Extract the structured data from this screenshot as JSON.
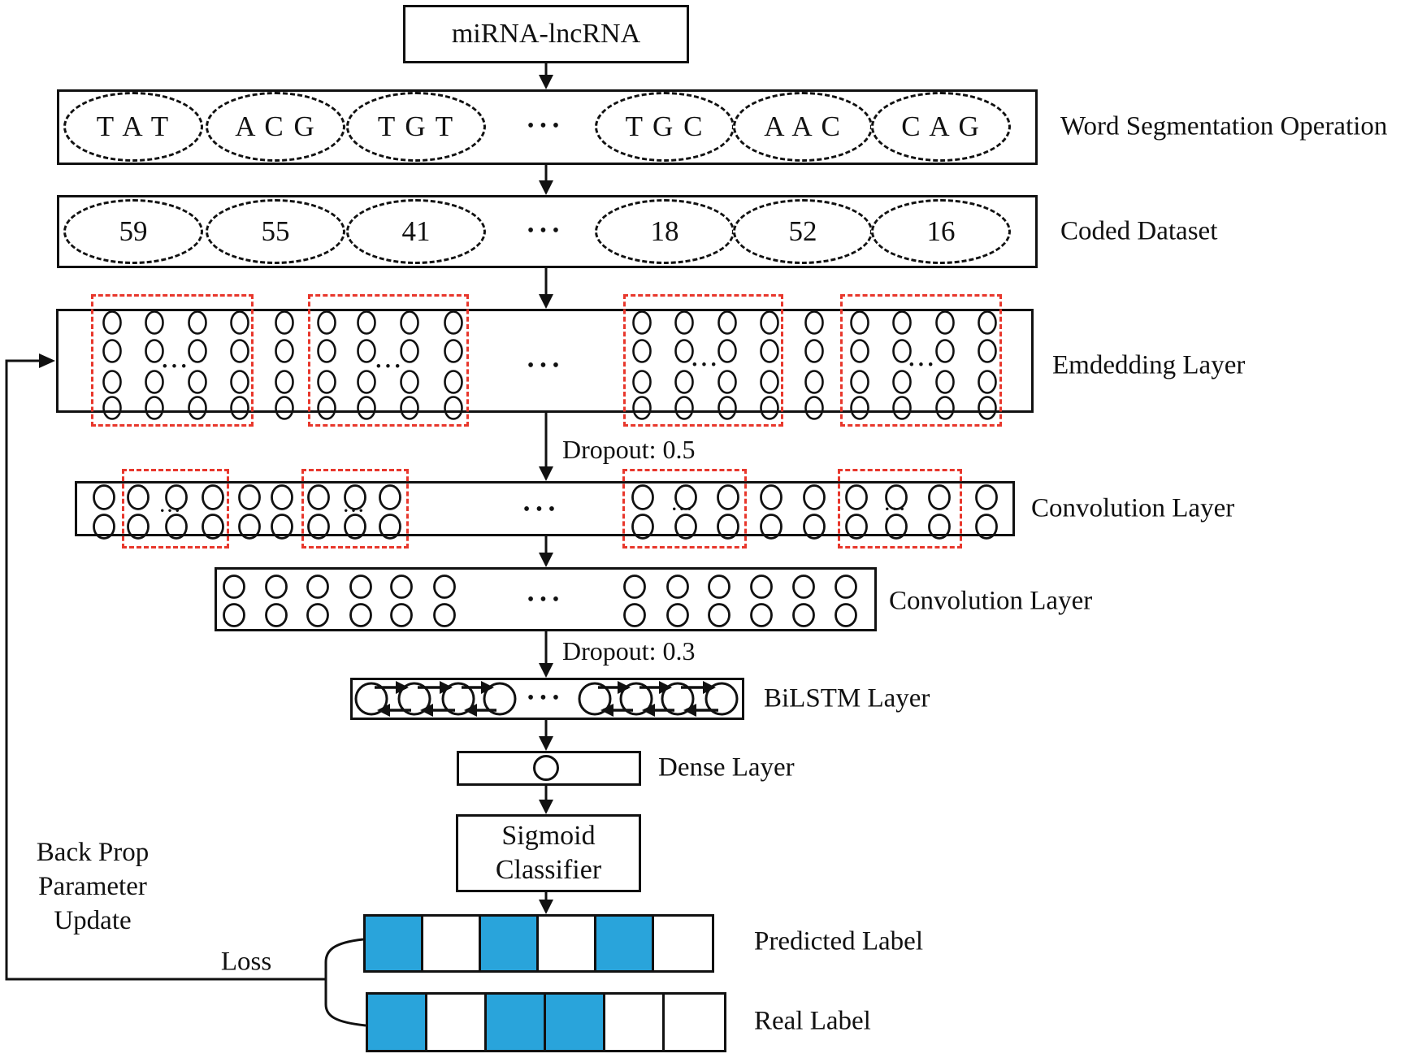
{
  "colors": {
    "blue": "#29a4db",
    "red": "#e8372c",
    "ink": "#111111",
    "white": "#ffffff"
  },
  "dots": "•••",
  "title": "miRNA-lncRNA",
  "rows": {
    "segmentation": {
      "label": "Word Segmentation Operation",
      "items": [
        "T A T",
        "A C G",
        "T G T",
        "T G C",
        "A A C",
        "C A G"
      ]
    },
    "coded": {
      "label": "Coded Dataset",
      "items": [
        "59",
        "55",
        "41",
        "18",
        "52",
        "16"
      ]
    },
    "embedding": {
      "label": "Emdedding Layer"
    },
    "conv1": {
      "label": "Convolution Layer"
    },
    "conv2": {
      "label": "Convolution Layer"
    },
    "bilstm": {
      "label": "BiLSTM Layer"
    },
    "dense": {
      "label": "Dense Layer"
    },
    "sigmoid": {
      "line1": "Sigmoid",
      "line2": "Classifier"
    },
    "predicted": {
      "label": "Predicted Label",
      "cells": [
        "blue",
        "white",
        "blue",
        "white",
        "blue",
        "white"
      ]
    },
    "real": {
      "label": "Real Label",
      "cells": [
        "blue",
        "white",
        "blue",
        "blue",
        "white",
        "white"
      ]
    }
  },
  "annotations": {
    "dropout1": "Dropout: 0.5",
    "dropout2": "Dropout: 0.3",
    "backprop": [
      "Back Prop",
      "Parameter",
      "Update"
    ],
    "loss": "Loss"
  }
}
